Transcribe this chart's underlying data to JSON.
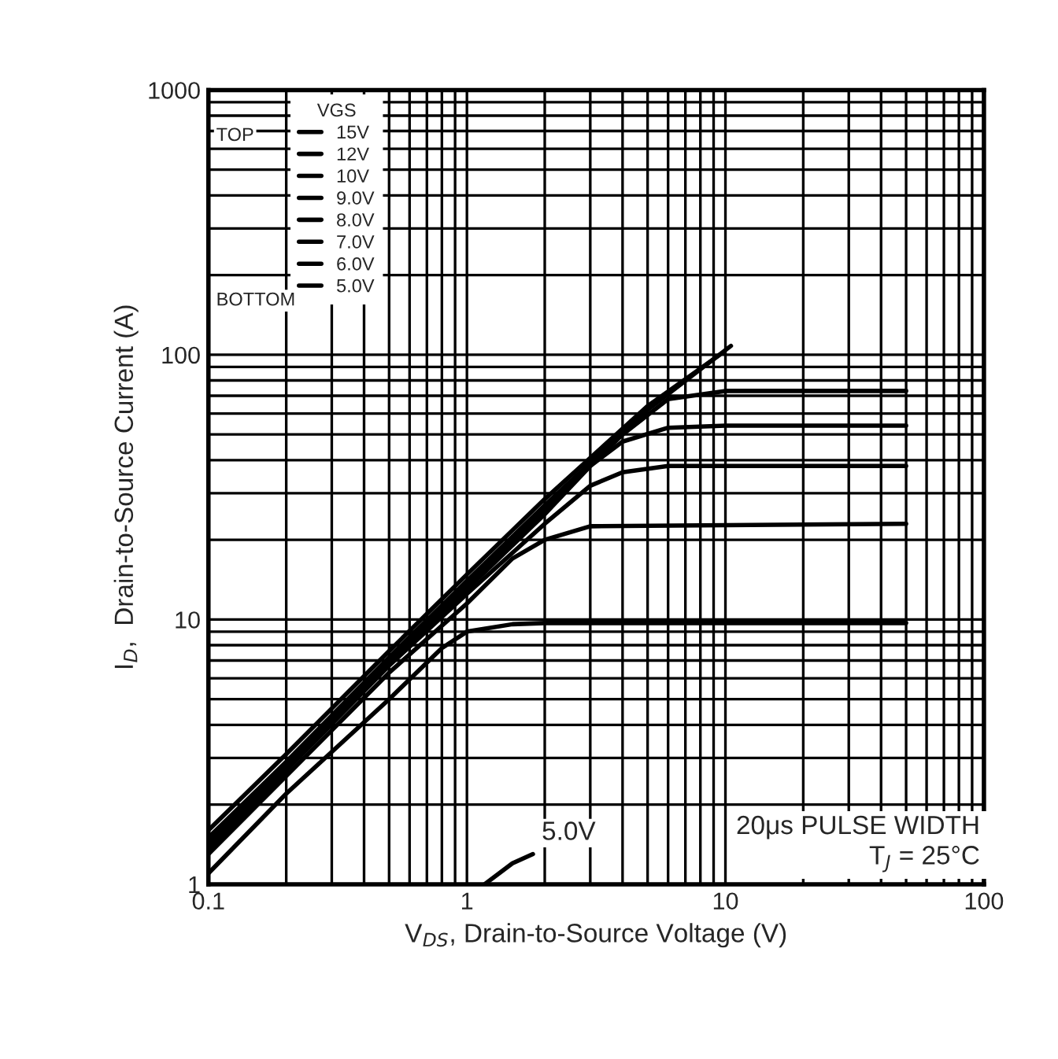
{
  "chart_data": {
    "type": "line",
    "xlabel": "V$_{DS}$, Drain-to-Source Voltage (V)",
    "ylabel": "I$_{D}$,  Drain-to-Source Current (A)",
    "legend_title": "VGS",
    "legend": "top left",
    "log": "xy",
    "grid": true,
    "line_style": "solid",
    "marker": "none",
    "xlim": [
      0.1,
      100
    ],
    "xticks": [
      {
        "value": 0.1,
        "label": "0.1"
      },
      1,
      10,
      100
    ],
    "ylim": [
      1,
      1000
    ],
    "yticks": [
      1,
      10,
      100,
      1000
    ],
    "series": [
      {
        "name": "15V",
        "color": "#000000",
        "x": [
          0.1,
          0.2,
          0.5,
          1,
          2,
          5,
          10.5
        ],
        "values": [
          1.5,
          2.9,
          7.2,
          14,
          27,
          62,
          108
        ]
      },
      {
        "name": "12V",
        "color": "#000000",
        "x": [
          0.1,
          0.2,
          0.5,
          1,
          2,
          5,
          9.5
        ],
        "values": [
          1.6,
          3.1,
          7.6,
          14.8,
          28.5,
          64,
          100
        ]
      },
      {
        "name": "10V",
        "color": "#000000",
        "x": [
          0.1,
          0.2,
          0.5,
          1,
          2,
          4,
          6,
          10,
          50
        ],
        "values": [
          1.45,
          2.85,
          7,
          13.5,
          26,
          50,
          68,
          73,
          73
        ]
      },
      {
        "name": "9.0V",
        "color": "#000000",
        "x": [
          0.1,
          0.5,
          1,
          2,
          3,
          4,
          6,
          10,
          50
        ],
        "values": [
          1.4,
          6.9,
          13,
          25,
          38,
          47,
          53,
          54,
          54
        ]
      },
      {
        "name": "8.0V",
        "color": "#000000",
        "x": [
          0.1,
          0.5,
          1,
          2,
          3,
          4,
          6,
          50
        ],
        "values": [
          1.35,
          6.7,
          12.5,
          23,
          32,
          36,
          38,
          38
        ]
      },
      {
        "name": "7.0V",
        "color": "#000000",
        "x": [
          0.1,
          0.5,
          1,
          1.5,
          2,
          3,
          50
        ],
        "values": [
          1.3,
          6.3,
          11.5,
          17,
          20,
          22.5,
          23
        ]
      },
      {
        "name": "6.0V",
        "color": "#000000",
        "x": [
          0.1,
          0.2,
          0.5,
          0.8,
          1,
          1.5,
          2,
          50
        ],
        "values": [
          1.1,
          2.2,
          5,
          7.8,
          9,
          9.6,
          9.7,
          9.7
        ]
      },
      {
        "name": "5.0V",
        "color": "#000000",
        "x": [
          1.17,
          1.5,
          1.8
        ],
        "values": [
          1,
          1.2,
          1.3
        ]
      }
    ],
    "annotations": [
      "TOP",
      "BOTTOM",
      {
        "text": "5.0V",
        "x": 1.8,
        "y": 1.3
      },
      "20μs PULSE WIDTH\nT$_{J}$ = 25°C"
    ]
  }
}
